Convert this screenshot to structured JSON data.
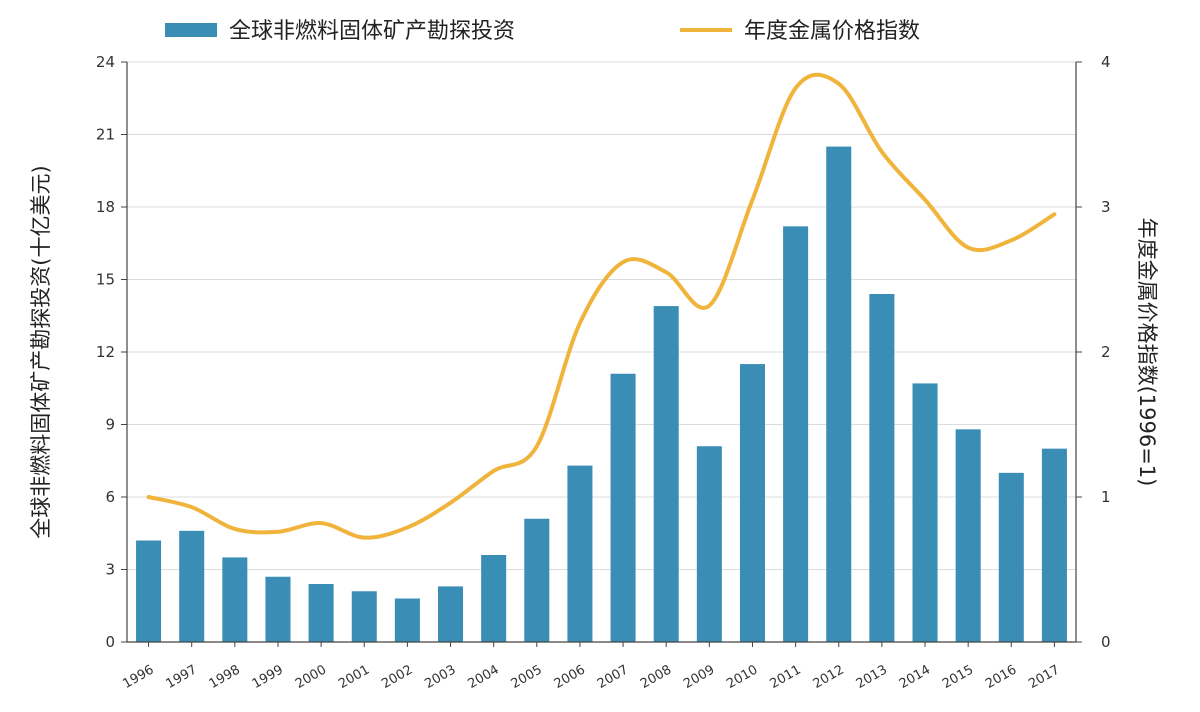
{
  "chart_data": {
    "type": "bar+line",
    "categories": [
      "1996",
      "1997",
      "1998",
      "1999",
      "2000",
      "2001",
      "2002",
      "2003",
      "2004",
      "2005",
      "2006",
      "2007",
      "2008",
      "2009",
      "2010",
      "2011",
      "2012",
      "2013",
      "2014",
      "2015",
      "2016",
      "2017"
    ],
    "series": [
      {
        "name": "全球非燃料固体矿产勘探投资",
        "type": "bar",
        "axis": "left",
        "color": "#3a8db5",
        "values": [
          4.2,
          4.6,
          3.5,
          2.7,
          2.4,
          2.1,
          1.8,
          2.3,
          3.6,
          5.1,
          7.3,
          11.1,
          13.9,
          8.1,
          11.5,
          17.2,
          20.5,
          14.4,
          10.7,
          8.8,
          7.0,
          8.0
        ]
      },
      {
        "name": "年度金属价格指数",
        "type": "line",
        "axis": "right",
        "color": "#f0b43c",
        "values": [
          1.0,
          0.93,
          0.78,
          0.76,
          0.82,
          0.72,
          0.79,
          0.96,
          1.18,
          1.35,
          2.2,
          2.62,
          2.55,
          2.32,
          3.05,
          3.82,
          3.85,
          3.38,
          3.05,
          2.72,
          2.77,
          2.95
        ]
      }
    ],
    "ylabel": "全球非燃料固体矿产勘探投资(十亿美元)",
    "y2label": "年度金属价格指数(1996=1)",
    "ylim": [
      0,
      24
    ],
    "y2lim": [
      0,
      4
    ],
    "yticks": [
      "0",
      "3",
      "6",
      "9",
      "12",
      "15",
      "18",
      "21",
      "24"
    ],
    "y2ticks": [
      "0",
      "1",
      "2",
      "3",
      "4"
    ],
    "grid": true,
    "legend_position": "top"
  }
}
